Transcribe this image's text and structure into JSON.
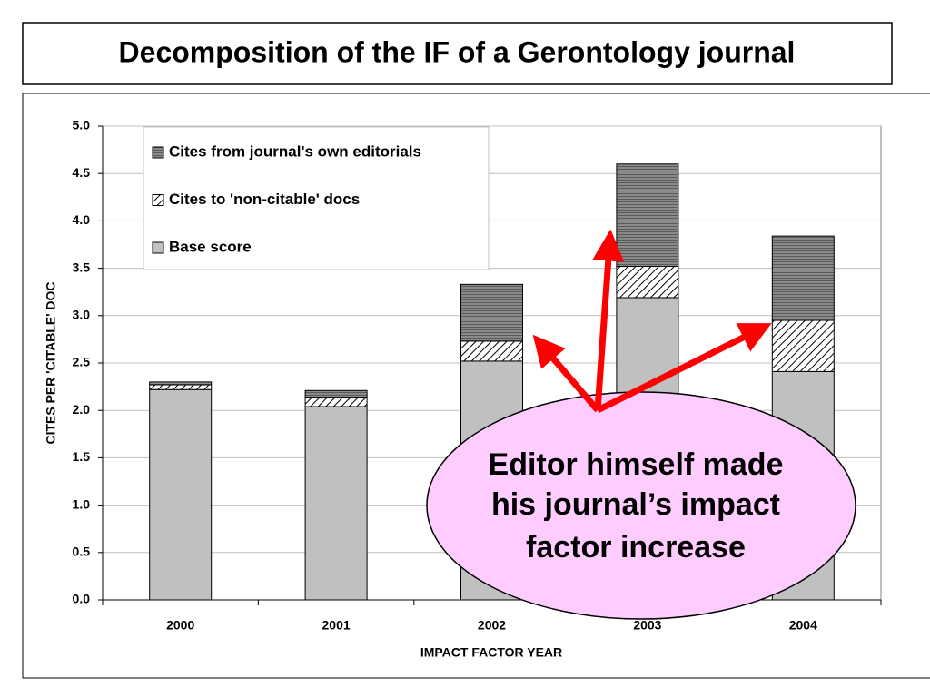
{
  "chart_data": {
    "type": "stacked_bar",
    "title": "Decomposition of the IF of a Gerontology journal",
    "x_label": "IMPACT FACTOR YEAR",
    "y_label": "CITES PER 'CITABLE' DOC",
    "categories": [
      "2000",
      "2001",
      "2002",
      "2003",
      "2004"
    ],
    "series": [
      {
        "name": "Base score",
        "color": "#c0c0c0",
        "pattern": "solid",
        "values": [
          2.22,
          2.04,
          2.52,
          3.19,
          2.41
        ]
      },
      {
        "name": "Cites to 'non-citable' docs",
        "color": "#ffffff",
        "pattern": "diagonal",
        "values": [
          0.05,
          0.1,
          0.21,
          0.33,
          0.54
        ]
      },
      {
        "name": "Cites from journal's own editorials",
        "color": "#808080",
        "pattern": "horizontal",
        "values": [
          0.03,
          0.07,
          0.6,
          1.08,
          0.89
        ]
      }
    ],
    "ylim": [
      0,
      5
    ],
    "yticks": [
      {
        "value": 0,
        "label": "0.0"
      },
      0.5,
      {
        "value": 1,
        "label": "1.0"
      },
      1.5,
      {
        "value": 2,
        "label": "2.0"
      },
      2.5,
      {
        "value": 3,
        "label": "3.0"
      },
      3.5,
      {
        "value": 4,
        "label": "4.0"
      },
      4.5,
      {
        "value": 5,
        "label": "5.0"
      }
    ],
    "grid": true,
    "legend": "upper left",
    "annotation": [
      "Editor himself made",
      "his journal’s impact",
      "factor increase"
    ]
  }
}
